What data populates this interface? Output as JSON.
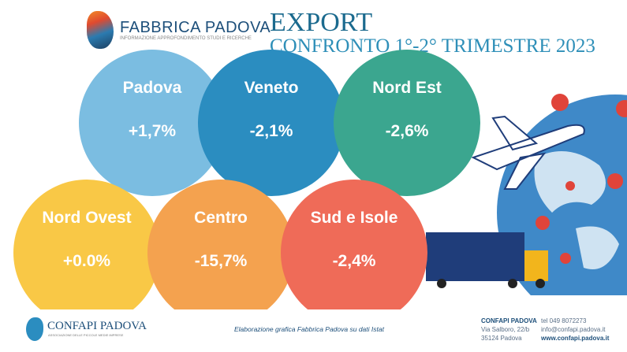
{
  "header": {
    "brand": "FABBRICA PADOVA",
    "brand_tagline": "INFORMAZIONE APPROFONDIMENTO STUDI E RICERCHE",
    "title": "EXPORT",
    "subtitle": "CONFRONTO 1°-2° TRIMESTRE 2023"
  },
  "regions": [
    {
      "name": "Padova",
      "value": "+1,7%",
      "color": "#7bbde1"
    },
    {
      "name": "Veneto",
      "value": "-2,1%",
      "color": "#2b8dc0"
    },
    {
      "name": "Nord Est",
      "value": "-2,6%",
      "color": "#3ba68f"
    },
    {
      "name": "Nord Ovest",
      "value": "+0.0%",
      "color": "#f9c846"
    },
    {
      "name": "Centro",
      "value": "-15,7%",
      "color": "#f4a24f"
    },
    {
      "name": "Sud e Isole",
      "value": "-2,4%",
      "color": "#ef6b58"
    }
  ],
  "footer": {
    "org": "CONFAPI PADOVA",
    "org_tagline": "ASSOCIAZIONE DELLE PICCOLE MEDIE IMPRESE",
    "credit": "Elaborazione grafica Fabbrica Padova su dati Istat",
    "contact_name": "CONFAPI PADOVA",
    "address1": "Via Salboro, 22/b",
    "address2": "35124 Padova",
    "tel": "tel 049 8072273",
    "email": "info@confapi.padova.it",
    "web": "www.confapi.padova.it"
  }
}
